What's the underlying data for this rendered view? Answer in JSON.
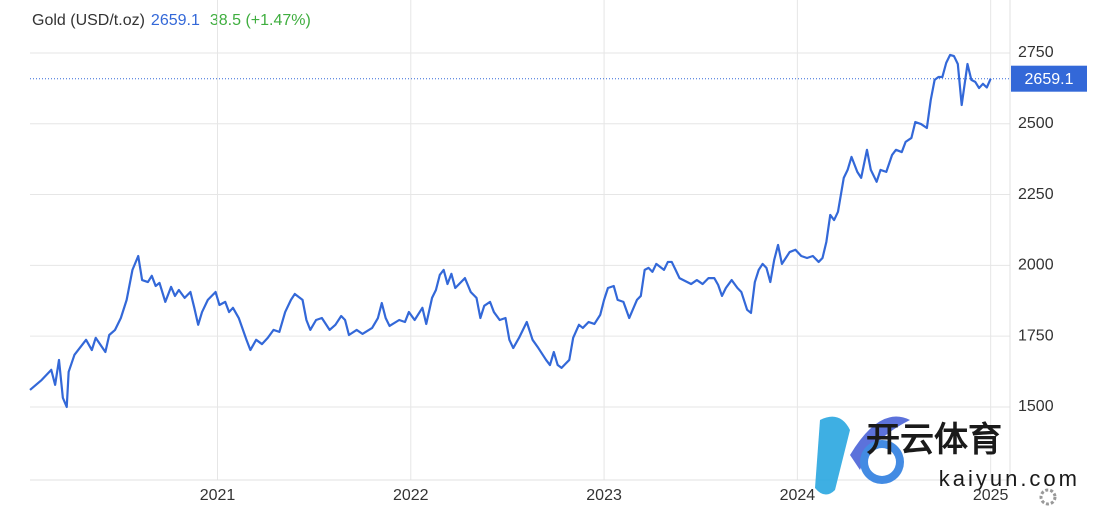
{
  "chart_data": {
    "type": "line",
    "title": "Gold (USD/t.oz)",
    "price": 2659.1,
    "change": "38.5 (+1.47%)",
    "watermark": {
      "name": "开云体育",
      "site": "kaiyun.com"
    },
    "x": [
      2020.03,
      2020.09,
      2020.14,
      2020.16,
      2020.18,
      2020.2,
      2020.22,
      2020.23,
      2020.26,
      2020.32,
      2020.35,
      2020.37,
      2020.42,
      2020.44,
      2020.47,
      2020.5,
      2020.53,
      2020.56,
      2020.59,
      2020.61,
      2020.64,
      2020.66,
      2020.68,
      2020.7,
      2020.73,
      2020.76,
      2020.78,
      2020.8,
      2020.83,
      2020.86,
      2020.88,
      2020.9,
      2020.92,
      2020.95,
      2020.99,
      2021.01,
      2021.04,
      2021.06,
      2021.08,
      2021.11,
      2021.15,
      2021.17,
      2021.2,
      2021.23,
      2021.26,
      2021.29,
      2021.32,
      2021.35,
      2021.38,
      2021.4,
      2021.44,
      2021.46,
      2021.48,
      2021.51,
      2021.54,
      2021.58,
      2021.61,
      2021.64,
      2021.66,
      2021.68,
      2021.72,
      2021.75,
      2021.8,
      2021.83,
      2021.85,
      2021.87,
      2021.89,
      2021.94,
      2021.97,
      2021.99,
      2022.02,
      2022.06,
      2022.08,
      2022.11,
      2022.13,
      2022.15,
      2022.17,
      2022.19,
      2022.21,
      2022.23,
      2022.28,
      2022.31,
      2022.34,
      2022.36,
      2022.38,
      2022.41,
      2022.43,
      2022.46,
      2022.49,
      2022.51,
      2022.53,
      2022.56,
      2022.6,
      2022.63,
      2022.66,
      2022.7,
      2022.72,
      2022.74,
      2022.76,
      2022.78,
      2022.8,
      2022.82,
      2022.84,
      2022.87,
      2022.89,
      2022.92,
      2022.95,
      2022.98,
      2023.0,
      2023.02,
      2023.05,
      2023.07,
      2023.1,
      2023.13,
      2023.17,
      2023.19,
      2023.21,
      2023.23,
      2023.25,
      2023.27,
      2023.31,
      2023.33,
      2023.35,
      2023.37,
      2023.39,
      2023.45,
      2023.48,
      2023.51,
      2023.54,
      2023.57,
      2023.59,
      2023.61,
      2023.63,
      2023.66,
      2023.69,
      2023.71,
      2023.74,
      2023.76,
      2023.78,
      2023.8,
      2023.82,
      2023.84,
      2023.86,
      2023.88,
      2023.9,
      2023.92,
      2023.94,
      2023.96,
      2023.99,
      2024.02,
      2024.05,
      2024.08,
      2024.11,
      2024.13,
      2024.15,
      2024.17,
      2024.19,
      2024.21,
      2024.24,
      2024.26,
      2024.28,
      2024.31,
      2024.33,
      2024.36,
      2024.38,
      2024.41,
      2024.43,
      2024.46,
      2024.49,
      2024.51,
      2024.54,
      2024.56,
      2024.59,
      2024.61,
      2024.64,
      2024.67,
      2024.69,
      2024.71,
      2024.73,
      2024.75,
      2024.77,
      2024.79,
      2024.81,
      2024.83,
      2024.85,
      2024.88,
      2024.9,
      2024.92,
      2024.94,
      2024.96,
      2024.98,
      2025.0
    ],
    "series": [
      {
        "color": "#3368d8",
        "values": [
          1560,
          1595,
          1631,
          1578,
          1666,
          1532,
          1500,
          1624,
          1684,
          1737,
          1701,
          1744,
          1694,
          1754,
          1772,
          1814,
          1878,
          1984,
          2033,
          1948,
          1941,
          1963,
          1927,
          1938,
          1871,
          1924,
          1892,
          1913,
          1885,
          1906,
          1850,
          1790,
          1835,
          1878,
          1906,
          1860,
          1871,
          1835,
          1850,
          1814,
          1737,
          1701,
          1737,
          1722,
          1744,
          1772,
          1765,
          1835,
          1878,
          1899,
          1878,
          1807,
          1772,
          1807,
          1814,
          1772,
          1790,
          1821,
          1807,
          1754,
          1772,
          1758,
          1779,
          1814,
          1867,
          1814,
          1786,
          1807,
          1800,
          1835,
          1807,
          1850,
          1793,
          1885,
          1913,
          1966,
          1984,
          1934,
          1970,
          1920,
          1955,
          1906,
          1885,
          1814,
          1857,
          1871,
          1835,
          1807,
          1814,
          1737,
          1708,
          1744,
          1800,
          1737,
          1708,
          1666,
          1648,
          1694,
          1648,
          1638,
          1652,
          1666,
          1744,
          1790,
          1779,
          1800,
          1793,
          1825,
          1878,
          1920,
          1927,
          1878,
          1871,
          1814,
          1878,
          1892,
          1984,
          1991,
          1977,
          2005,
          1984,
          2012,
          2012,
          1984,
          1955,
          1934,
          1948,
          1934,
          1955,
          1955,
          1931,
          1892,
          1920,
          1948,
          1920,
          1906,
          1843,
          1832,
          1941,
          1984,
          2005,
          1991,
          1941,
          2019,
          2072,
          2005,
          2026,
          2047,
          2055,
          2033,
          2026,
          2033,
          2012,
          2026,
          2083,
          2178,
          2160,
          2189,
          2309,
          2337,
          2383,
          2330,
          2309,
          2408,
          2337,
          2295,
          2337,
          2330,
          2390,
          2408,
          2400,
          2436,
          2450,
          2506,
          2499,
          2485,
          2584,
          2655,
          2665,
          2665,
          2715,
          2743,
          2739,
          2711,
          2566,
          2711,
          2655,
          2648,
          2626,
          2641,
          2628,
          2659.1
        ]
      }
    ],
    "xlim": [
      2020.03,
      2025.1
    ],
    "xticks": [
      2021,
      2022,
      2023,
      2024,
      2025
    ],
    "ylim": [
      1242,
      2937
    ],
    "yticks": [
      1500,
      1750,
      2000,
      2250,
      2500,
      2750
    ],
    "grid": true
  }
}
